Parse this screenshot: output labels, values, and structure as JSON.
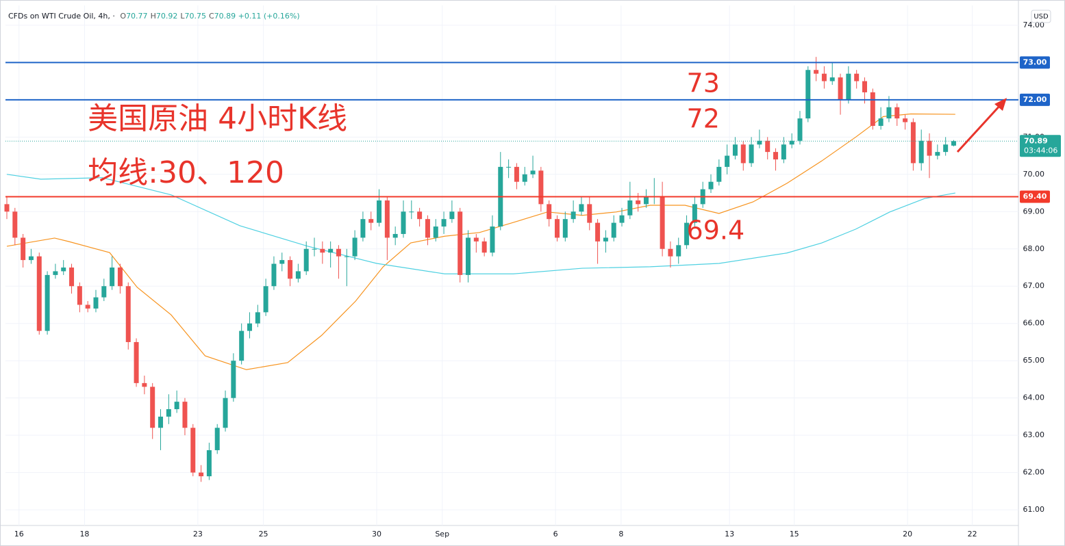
{
  "chart_data": {
    "type": "candlestick",
    "header": {
      "symbol": "CFDs on WTI Crude Oil, 4h, ·",
      "items": [
        {
          "key": "O",
          "text": "70.77"
        },
        {
          "key": "H",
          "text": "70.92"
        },
        {
          "key": "L",
          "text": "70.75"
        },
        {
          "key": "C",
          "text": "70.89"
        },
        {
          "key": "",
          "text": "+0.11 (+0.16%)"
        }
      ]
    },
    "currency": "USD",
    "up_color": "#26a69a",
    "down_color": "#ef5350",
    "open": [
      69.2,
      69.0,
      68.3,
      67.7,
      67.8,
      65.8,
      67.3,
      67.4,
      67.5,
      67.0,
      66.5,
      66.4,
      66.7,
      67.0,
      67.5,
      67.0,
      65.5,
      64.4,
      64.3,
      63.2,
      63.5,
      63.7,
      63.9,
      63.2,
      62.0,
      61.9,
      62.6,
      63.2,
      64.0,
      65.0,
      65.8,
      66.0,
      66.3,
      67.0,
      67.6,
      67.7,
      67.2,
      67.4,
      68.0,
      68.0,
      67.9,
      68.0,
      67.8,
      67.8,
      68.3,
      68.8,
      68.7,
      69.3,
      68.3,
      68.4,
      69.0,
      69.0,
      68.8,
      68.3,
      68.6,
      68.8,
      69.0,
      67.3,
      68.3,
      68.2,
      67.9,
      68.6,
      70.2,
      70.2,
      69.8,
      70.0,
      70.1,
      69.2,
      68.8,
      68.3,
      68.8,
      69.0,
      69.2,
      68.7,
      68.2,
      68.3,
      68.7,
      68.9,
      69.3,
      69.2,
      69.4,
      69.4,
      68.0,
      67.8,
      68.1,
      68.7,
      69.2,
      69.6,
      69.8,
      70.2,
      70.5,
      70.8,
      70.3,
      70.8,
      70.9,
      70.6,
      70.4,
      70.8,
      70.9,
      71.5,
      72.8,
      72.7,
      72.5,
      72.6,
      72.0,
      72.7,
      72.5,
      72.2,
      71.3,
      71.5,
      71.8,
      71.5,
      71.4,
      70.3,
      70.9,
      70.5,
      70.6,
      70.77
    ],
    "high": [
      69.4,
      69.1,
      68.4,
      68.0,
      67.9,
      67.4,
      67.6,
      67.7,
      67.6,
      67.1,
      66.6,
      66.9,
      67.2,
      67.8,
      67.6,
      67.1,
      65.6,
      64.6,
      64.4,
      63.7,
      64.1,
      64.2,
      64.0,
      63.3,
      62.2,
      62.8,
      63.3,
      64.2,
      65.2,
      66.0,
      66.3,
      66.5,
      67.2,
      67.8,
      67.9,
      67.8,
      67.6,
      68.2,
      68.3,
      68.2,
      68.2,
      68.1,
      68.0,
      68.5,
      69.0,
      69.0,
      69.6,
      69.4,
      68.6,
      69.3,
      69.3,
      69.1,
      68.9,
      68.8,
      69.0,
      69.3,
      69.1,
      68.5,
      68.4,
      68.3,
      68.9,
      70.6,
      70.4,
      70.3,
      70.2,
      70.5,
      70.2,
      69.3,
      68.9,
      69.0,
      69.3,
      69.4,
      69.4,
      68.8,
      68.5,
      68.9,
      69.1,
      69.8,
      69.5,
      69.6,
      69.9,
      69.8,
      68.2,
      68.3,
      68.9,
      69.4,
      69.8,
      70.0,
      70.4,
      70.8,
      71.0,
      70.9,
      71.0,
      71.2,
      71.0,
      70.7,
      71.0,
      71.1,
      71.7,
      72.9,
      73.15,
      72.9,
      73.0,
      72.7,
      72.9,
      72.8,
      72.6,
      72.3,
      71.8,
      72.1,
      71.9,
      71.6,
      71.5,
      71.2,
      71.1,
      70.8,
      71.0,
      70.92
    ],
    "low": [
      68.8,
      68.1,
      67.5,
      67.6,
      65.7,
      65.7,
      67.2,
      67.3,
      66.8,
      66.3,
      66.3,
      66.3,
      66.6,
      66.9,
      66.8,
      65.3,
      64.3,
      64.1,
      62.9,
      62.6,
      63.3,
      63.6,
      63.0,
      61.9,
      61.75,
      61.8,
      62.5,
      63.1,
      63.9,
      64.9,
      65.6,
      65.9,
      66.2,
      66.9,
      67.4,
      67.0,
      67.1,
      67.3,
      67.8,
      67.6,
      67.5,
      67.2,
      67.0,
      67.7,
      68.2,
      68.5,
      68.6,
      67.7,
      68.1,
      68.3,
      68.8,
      68.6,
      68.1,
      68.2,
      68.4,
      68.7,
      67.1,
      67.1,
      67.9,
      67.8,
      67.8,
      68.5,
      69.9,
      69.6,
      69.7,
      69.9,
      69.0,
      68.6,
      68.2,
      68.2,
      68.7,
      68.9,
      68.5,
      67.6,
      67.9,
      68.2,
      68.6,
      68.8,
      69.0,
      69.1,
      69.2,
      67.8,
      67.5,
      67.6,
      68.0,
      68.6,
      69.1,
      69.5,
      69.7,
      70.0,
      70.4,
      70.1,
      70.2,
      70.7,
      70.4,
      70.1,
      70.3,
      70.7,
      70.8,
      71.4,
      72.5,
      72.3,
      72.4,
      71.6,
      71.9,
      72.3,
      71.9,
      71.2,
      71.2,
      71.4,
      71.3,
      71.2,
      70.1,
      70.1,
      69.9,
      70.4,
      70.5,
      70.75
    ],
    "close": [
      69.0,
      68.3,
      67.7,
      67.8,
      65.8,
      67.3,
      67.4,
      67.5,
      67.0,
      66.5,
      66.4,
      66.7,
      67.0,
      67.5,
      67.0,
      65.5,
      64.4,
      64.3,
      63.2,
      63.5,
      63.7,
      63.9,
      63.2,
      62.0,
      61.9,
      62.6,
      63.2,
      64.0,
      65.0,
      65.8,
      66.0,
      66.3,
      67.0,
      67.6,
      67.7,
      67.2,
      67.4,
      68.0,
      68.0,
      67.9,
      68.0,
      67.8,
      67.8,
      68.3,
      68.8,
      68.7,
      69.3,
      68.3,
      68.4,
      69.0,
      69.0,
      68.8,
      68.3,
      68.6,
      68.8,
      69.0,
      67.3,
      68.3,
      68.2,
      67.9,
      68.6,
      70.2,
      70.2,
      69.8,
      70.0,
      70.1,
      69.2,
      68.8,
      68.3,
      68.8,
      69.0,
      69.2,
      68.7,
      68.2,
      68.3,
      68.7,
      68.9,
      69.3,
      69.2,
      69.4,
      69.4,
      68.0,
      67.8,
      68.1,
      68.7,
      69.2,
      69.6,
      69.8,
      70.2,
      70.5,
      70.8,
      70.3,
      70.8,
      70.9,
      70.6,
      70.4,
      70.8,
      70.9,
      71.5,
      72.8,
      72.7,
      72.5,
      72.6,
      72.0,
      72.7,
      72.5,
      72.2,
      71.3,
      71.5,
      71.8,
      71.5,
      71.4,
      70.3,
      70.9,
      70.5,
      70.6,
      70.8,
      70.89
    ],
    "lines": [
      {
        "color": "#f7931e",
        "x": [
          0,
          5.9,
          7.6,
          12.7,
          16.1,
          20.3,
          24.5,
          29.6,
          34.7,
          38.9,
          43.1,
          46.5,
          49.9,
          54.1,
          58.4,
          62.6,
          66.8,
          71.1,
          75.3,
          79.5,
          83.8,
          88.0,
          92.2,
          96.4,
          100.7,
          104.9,
          108.3,
          111.7,
          117.2
        ],
        "values": [
          68.07,
          68.29,
          68.2,
          67.9,
          66.97,
          66.23,
          65.13,
          64.76,
          64.95,
          65.68,
          66.6,
          67.52,
          68.16,
          68.34,
          68.44,
          68.71,
          68.99,
          68.9,
          68.99,
          69.17,
          69.17,
          68.95,
          69.26,
          69.76,
          70.36,
          71.0,
          71.55,
          71.62,
          71.61
        ]
      },
      {
        "color": "#4dd0e1",
        "x": [
          0,
          4.2,
          11.8,
          20.3,
          28.8,
          37.2,
          45.7,
          54.1,
          62.6,
          71.1,
          79.5,
          88.0,
          96.4,
          100.7,
          104.9,
          109.1,
          113.4,
          117.2
        ],
        "values": [
          70.0,
          69.87,
          69.91,
          69.45,
          68.62,
          68.07,
          67.61,
          67.33,
          67.33,
          67.48,
          67.52,
          67.61,
          67.89,
          68.16,
          68.53,
          68.99,
          69.35,
          69.5
        ]
      }
    ],
    "levels": [
      {
        "value": 73,
        "label": "73.00",
        "color": "#1e64c8"
      },
      {
        "value": 72,
        "label": "72.00",
        "color": "#1e64c8"
      },
      {
        "value": 69.4,
        "label": "69.40",
        "color": "#f23a2a"
      }
    ],
    "current": {
      "value": 70.89,
      "label": "70.89",
      "countdown": "03:44:06"
    },
    "annotations": [
      {
        "text": "73",
        "x": 84,
        "y": 72.4
      },
      {
        "text": "72",
        "x": 84,
        "y": 71.45
      },
      {
        "text": "69.4",
        "x": 84,
        "y": 68.45
      },
      {
        "text": "美国原油 4小时K线",
        "x": 10,
        "y": 71.45
      },
      {
        "text": "均线:30、120",
        "x": 10,
        "y": 70.0
      }
    ],
    "xlim": [
      -0.17,
      125
    ],
    "ylim": [
      60.58,
      74.53
    ],
    "xticks": [
      {
        "value": 1.5,
        "label": "16"
      },
      {
        "value": 9.6,
        "label": "18"
      },
      {
        "value": 23.6,
        "label": "23"
      },
      {
        "value": 31.7,
        "label": "25"
      },
      {
        "value": 45.7,
        "label": "30"
      },
      {
        "value": 53.8,
        "label": "Sep"
      },
      {
        "value": 67.8,
        "label": "6"
      },
      {
        "value": 75.9,
        "label": "8"
      },
      {
        "value": 89.3,
        "label": "13"
      },
      {
        "value": 97.3,
        "label": "15"
      },
      {
        "value": 111.3,
        "label": "20"
      },
      {
        "value": 119.3,
        "label": "22"
      }
    ],
    "yticks": [
      {
        "value": 61,
        "label": "61.00"
      },
      {
        "value": 62,
        "label": "62.00"
      },
      {
        "value": 63,
        "label": "63.00"
      },
      {
        "value": 64,
        "label": "64.00"
      },
      {
        "value": 65,
        "label": "65.00"
      },
      {
        "value": 66,
        "label": "66.00"
      },
      {
        "value": 67,
        "label": "67.00"
      },
      {
        "value": 68,
        "label": "68.00"
      },
      {
        "value": 69,
        "label": "69.00"
      },
      {
        "value": 70,
        "label": "70.00"
      },
      {
        "value": 71,
        "label": "71.00"
      },
      {
        "value": 72,
        "label": "72.00"
      },
      {
        "value": 73,
        "label": "73.00"
      },
      {
        "value": 74,
        "label": "74.00"
      }
    ],
    "grid": true
  }
}
